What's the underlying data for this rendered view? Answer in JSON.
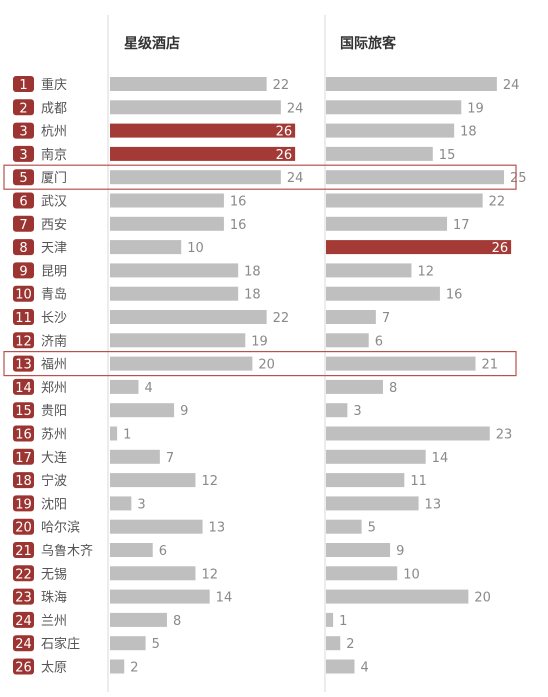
{
  "chart_data": {
    "type": "bar",
    "columns": [
      {
        "name": "星级酒店",
        "values": [
          22,
          24,
          26,
          26,
          24,
          16,
          16,
          10,
          18,
          18,
          22,
          19,
          20,
          4,
          9,
          1,
          7,
          12,
          3,
          13,
          6,
          12,
          14,
          8,
          5,
          2
        ]
      },
      {
        "name": "国际旅客",
        "values": [
          24,
          19,
          18,
          15,
          25,
          22,
          17,
          26,
          12,
          16,
          7,
          6,
          21,
          8,
          3,
          23,
          14,
          11,
          13,
          5,
          9,
          10,
          20,
          1,
          2,
          4
        ]
      }
    ],
    "ranks": [
      1,
      2,
      3,
      3,
      5,
      6,
      7,
      8,
      9,
      10,
      11,
      12,
      13,
      14,
      15,
      16,
      17,
      18,
      19,
      20,
      21,
      22,
      23,
      24,
      24,
      26
    ],
    "categories": [
      "重庆",
      "成都",
      "杭州",
      "南京",
      "厦门",
      "武汉",
      "西安",
      "天津",
      "昆明",
      "青岛",
      "长沙",
      "济南",
      "福州",
      "郑州",
      "贵阳",
      "苏州",
      "大连",
      "宁波",
      "沈阳",
      "哈尔滨",
      "乌鲁木齐",
      "无锡",
      "珠海",
      "兰州",
      "石家庄",
      "太原"
    ],
    "xlim": [
      0,
      26
    ],
    "highlighted_rows": [
      "厦门",
      "福州"
    ],
    "legend": "none",
    "grid": false
  },
  "colors": {
    "bar": "#c0bfbf",
    "bar_top": "#a33a36",
    "rank_badge": "#9c3531",
    "highlight_border": "#b9524e",
    "divider": "#d9d9d9",
    "city_text": "#555555",
    "value_text": "#8a8a8a",
    "header_text": "#333333"
  }
}
